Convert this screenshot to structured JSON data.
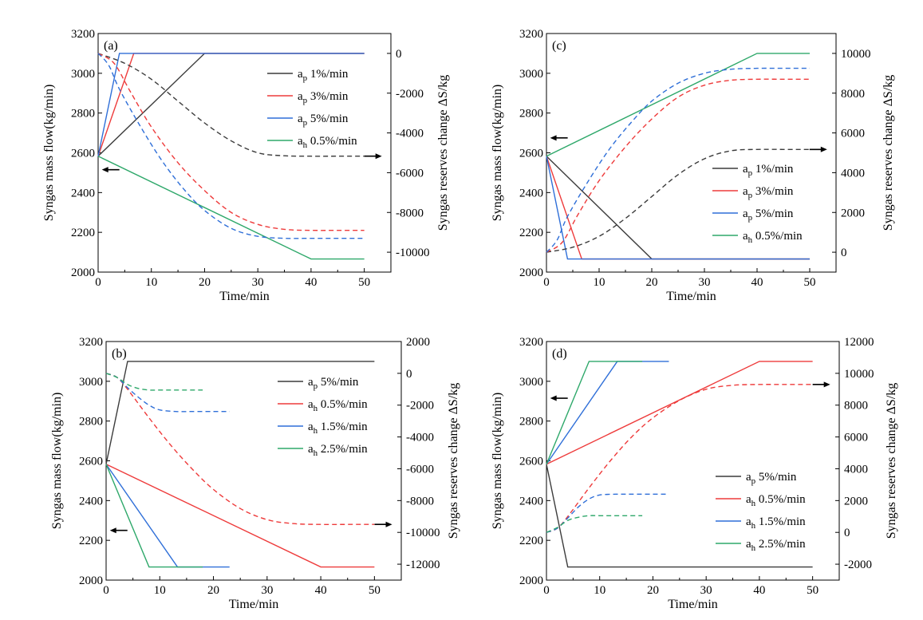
{
  "colors": {
    "black": "#3c3c3c",
    "red": "#ee3b3b",
    "blue": "#2f6fd8",
    "green": "#2ea86a"
  },
  "chart_data": [
    {
      "type": "line",
      "panel_label": "(a)",
      "xlabel": "Time/min",
      "ylabel": "Syngas mass flow(kg/min)",
      "y2label": "Syngas reserves change ΔS/kg",
      "xlim": [
        0,
        55
      ],
      "ylim": [
        2000,
        3200
      ],
      "y2lim": [
        -11000,
        1000
      ],
      "xticks": [
        0,
        10,
        20,
        30,
        40,
        50
      ],
      "yticks": [
        2000,
        2200,
        2400,
        2600,
        2800,
        3000,
        3200
      ],
      "y2ticks": [
        -10000,
        -8000,
        -6000,
        -4000,
        -2000,
        0
      ],
      "legend": "right",
      "series": [
        {
          "name_main": "a",
          "name_sub": "p",
          "name_rest": " 1%/min",
          "color": "black",
          "axis": "left",
          "style": "solid",
          "x": [
            0,
            20,
            50
          ],
          "y": [
            2583,
            3100,
            3100
          ]
        },
        {
          "name_main": "a",
          "name_sub": "p",
          "name_rest": " 3%/min",
          "color": "red",
          "axis": "left",
          "style": "solid",
          "x": [
            0,
            6.7,
            50
          ],
          "y": [
            2583,
            3100,
            3100
          ]
        },
        {
          "name_main": "a",
          "name_sub": "p",
          "name_rest": " 5%/min",
          "color": "blue",
          "axis": "left",
          "style": "solid",
          "x": [
            0,
            4,
            50
          ],
          "y": [
            2583,
            3100,
            3100
          ]
        },
        {
          "name_main": "a",
          "name_sub": "h",
          "name_rest": " 0.5%/min",
          "color": "green",
          "axis": "left",
          "style": "solid",
          "x": [
            0,
            40,
            50
          ],
          "y": [
            2583,
            2066,
            2066
          ]
        },
        {
          "color": "black",
          "axis": "right",
          "style": "dashed",
          "x": [
            0,
            5,
            10,
            15,
            20,
            25,
            30,
            35,
            40,
            45,
            50
          ],
          "y": [
            0,
            -500,
            -1300,
            -2400,
            -3500,
            -4400,
            -5000,
            -5150,
            -5170,
            -5170,
            -5170
          ]
        },
        {
          "color": "red",
          "axis": "right",
          "style": "dashed",
          "x": [
            0,
            3,
            6,
            10,
            15,
            20,
            25,
            30,
            35,
            40,
            45,
            50
          ],
          "y": [
            0,
            -500,
            -1900,
            -3700,
            -5500,
            -6900,
            -8000,
            -8600,
            -8850,
            -8900,
            -8900,
            -8900
          ]
        },
        {
          "color": "blue",
          "axis": "right",
          "style": "dashed",
          "x": [
            0,
            2,
            4,
            8,
            12,
            16,
            20,
            25,
            30,
            35,
            40,
            45,
            50
          ],
          "y": [
            0,
            -600,
            -1800,
            -3700,
            -5400,
            -6800,
            -7900,
            -8800,
            -9200,
            -9300,
            -9300,
            -9300,
            -9300
          ]
        }
      ],
      "arrows": [
        {
          "direction": "left",
          "axis": "left",
          "x": 1,
          "y": 2515
        },
        {
          "direction": "right",
          "axis": "right",
          "x": 53,
          "y": -5170
        }
      ]
    },
    {
      "type": "line",
      "panel_label": "(c)",
      "xlabel": "Time/min",
      "ylabel": "Syngas mass flow(kg/min)",
      "y2label": "Syngas reserves change ΔS/kg",
      "xlim": [
        0,
        55
      ],
      "ylim": [
        2000,
        3200
      ],
      "y2lim": [
        -1000,
        11000
      ],
      "xticks": [
        0,
        10,
        20,
        30,
        40,
        50
      ],
      "yticks": [
        2000,
        2200,
        2400,
        2600,
        2800,
        3000,
        3200
      ],
      "y2ticks": [
        0,
        2000,
        4000,
        6000,
        8000,
        10000
      ],
      "legend": "bottom-right",
      "series": [
        {
          "name_main": "a",
          "name_sub": "p",
          "name_rest": " 1%/min",
          "color": "black",
          "axis": "left",
          "style": "solid",
          "x": [
            0,
            20,
            50
          ],
          "y": [
            2583,
            2066,
            2066
          ]
        },
        {
          "name_main": "a",
          "name_sub": "p",
          "name_rest": " 3%/min",
          "color": "red",
          "axis": "left",
          "style": "solid",
          "x": [
            0,
            6.7,
            50
          ],
          "y": [
            2583,
            2066,
            2066
          ]
        },
        {
          "name_main": "a",
          "name_sub": "p",
          "name_rest": " 5%/min",
          "color": "blue",
          "axis": "left",
          "style": "solid",
          "x": [
            0,
            4,
            50
          ],
          "y": [
            2583,
            2066,
            2066
          ]
        },
        {
          "name_main": "a",
          "name_sub": "h",
          "name_rest": " 0.5%/min",
          "color": "green",
          "axis": "left",
          "style": "solid",
          "x": [
            0,
            40,
            50
          ],
          "y": [
            2583,
            3100,
            3100
          ]
        },
        {
          "color": "black",
          "axis": "right",
          "style": "dashed",
          "x": [
            0,
            5,
            10,
            15,
            20,
            25,
            30,
            35,
            40,
            45,
            50
          ],
          "y": [
            0,
            250,
            800,
            1700,
            2800,
            3900,
            4700,
            5100,
            5170,
            5170,
            5170
          ]
        },
        {
          "color": "red",
          "axis": "right",
          "style": "dashed",
          "x": [
            0,
            3,
            6,
            10,
            15,
            20,
            25,
            30,
            35,
            40,
            45,
            50
          ],
          "y": [
            0,
            500,
            1900,
            3600,
            5300,
            6700,
            7800,
            8400,
            8650,
            8700,
            8700,
            8700
          ]
        },
        {
          "color": "blue",
          "axis": "right",
          "style": "dashed",
          "x": [
            0,
            2,
            4,
            8,
            12,
            16,
            20,
            25,
            30,
            35,
            40,
            45,
            50
          ],
          "y": [
            0,
            600,
            1800,
            3600,
            5200,
            6500,
            7600,
            8500,
            9000,
            9200,
            9250,
            9250,
            9250
          ]
        }
      ],
      "arrows": [
        {
          "direction": "left",
          "axis": "left",
          "x": 1,
          "y": 2675
        },
        {
          "direction": "right",
          "axis": "right",
          "x": 53,
          "y": 5170
        }
      ]
    },
    {
      "type": "line",
      "panel_label": "(b)",
      "xlabel": "Time/min",
      "ylabel": "Syngas mass flow(kg/min)",
      "y2label": "Syngas reserves change ΔS/kg",
      "xlim": [
        0,
        55
      ],
      "ylim": [
        2000,
        3200
      ],
      "y2lim": [
        -13000,
        2000
      ],
      "xticks": [
        0,
        10,
        20,
        30,
        40,
        50
      ],
      "yticks": [
        2000,
        2200,
        2400,
        2600,
        2800,
        3000,
        3200
      ],
      "y2ticks": [
        -12000,
        -10000,
        -8000,
        -6000,
        -4000,
        -2000,
        0,
        2000
      ],
      "legend": "right",
      "series": [
        {
          "name_main": "a",
          "name_sub": "p",
          "name_rest": " 5%/min",
          "color": "black",
          "axis": "left",
          "style": "solid",
          "x": [
            0,
            4,
            50
          ],
          "y": [
            2583,
            3100,
            3100
          ]
        },
        {
          "name_main": "a",
          "name_sub": "h",
          "name_rest": " 0.5%/min",
          "color": "red",
          "axis": "left",
          "style": "solid",
          "x": [
            0,
            40,
            50
          ],
          "y": [
            2583,
            2066,
            2066
          ]
        },
        {
          "name_main": "a",
          "name_sub": "h",
          "name_rest": " 1.5%/min",
          "color": "blue",
          "axis": "left",
          "style": "solid",
          "x": [
            0,
            13.3,
            23
          ],
          "y": [
            2583,
            2066,
            2066
          ]
        },
        {
          "name_main": "a",
          "name_sub": "h",
          "name_rest": " 2.5%/min",
          "color": "green",
          "axis": "left",
          "style": "solid",
          "x": [
            0,
            8,
            18
          ],
          "y": [
            2583,
            2066,
            2066
          ]
        },
        {
          "color": "red",
          "axis": "right",
          "style": "dashed",
          "x": [
            0,
            2,
            4,
            8,
            12,
            16,
            20,
            25,
            30,
            35,
            40,
            45,
            50
          ],
          "y": [
            0,
            -250,
            -1000,
            -2800,
            -4500,
            -6000,
            -7300,
            -8500,
            -9200,
            -9450,
            -9500,
            -9500,
            -9500
          ]
        },
        {
          "color": "blue",
          "axis": "right",
          "style": "dashed",
          "x": [
            0,
            2,
            4,
            6,
            8,
            10,
            13,
            16,
            20,
            23
          ],
          "y": [
            0,
            -250,
            -900,
            -1500,
            -2000,
            -2300,
            -2400,
            -2400,
            -2400,
            -2400
          ]
        },
        {
          "color": "green",
          "axis": "right",
          "style": "dashed",
          "x": [
            0,
            2,
            4,
            6,
            8,
            10,
            13,
            18
          ],
          "y": [
            0,
            -250,
            -700,
            -950,
            -1050,
            -1050,
            -1050,
            -1050
          ]
        }
      ],
      "arrows": [
        {
          "direction": "left",
          "axis": "left",
          "x": 1,
          "y": 2250
        },
        {
          "direction": "right",
          "axis": "right",
          "x": 53,
          "y": -9500
        }
      ]
    },
    {
      "type": "line",
      "panel_label": "(d)",
      "xlabel": "Time/min",
      "ylabel": "Syngas mass flow(kg/min)",
      "y2label": "Syngas reserves change ΔS/kg",
      "xlim": [
        0,
        55
      ],
      "ylim": [
        2000,
        3200
      ],
      "y2lim": [
        -3000,
        12000
      ],
      "xticks": [
        0,
        10,
        20,
        30,
        40,
        50
      ],
      "yticks": [
        2000,
        2200,
        2400,
        2600,
        2800,
        3000,
        3200
      ],
      "y2ticks": [
        -2000,
        0,
        2000,
        4000,
        6000,
        8000,
        10000,
        12000
      ],
      "legend": "bottom-right",
      "series": [
        {
          "name_main": "a",
          "name_sub": "p",
          "name_rest": " 5%/min",
          "color": "black",
          "axis": "left",
          "style": "solid",
          "x": [
            0,
            4,
            50
          ],
          "y": [
            2583,
            2066,
            2066
          ]
        },
        {
          "name_main": "a",
          "name_sub": "h",
          "name_rest": " 0.5%/min",
          "color": "red",
          "axis": "left",
          "style": "solid",
          "x": [
            0,
            40,
            50
          ],
          "y": [
            2583,
            3100,
            3100
          ]
        },
        {
          "name_main": "a",
          "name_sub": "h",
          "name_rest": " 1.5%/min",
          "color": "blue",
          "axis": "left",
          "style": "solid",
          "x": [
            0,
            13.3,
            23
          ],
          "y": [
            2583,
            3100,
            3100
          ]
        },
        {
          "name_main": "a",
          "name_sub": "h",
          "name_rest": " 2.5%/min",
          "color": "green",
          "axis": "left",
          "style": "solid",
          "x": [
            0,
            8,
            18
          ],
          "y": [
            2583,
            3100,
            3100
          ]
        },
        {
          "color": "red",
          "axis": "right",
          "style": "dashed",
          "x": [
            0,
            2,
            4,
            8,
            12,
            16,
            20,
            25,
            30,
            35,
            40,
            45,
            50
          ],
          "y": [
            0,
            250,
            1000,
            2800,
            4500,
            6000,
            7200,
            8300,
            9000,
            9250,
            9300,
            9300,
            9300
          ]
        },
        {
          "color": "blue",
          "axis": "right",
          "style": "dashed",
          "x": [
            0,
            2,
            4,
            6,
            8,
            10,
            13,
            16,
            20,
            23
          ],
          "y": [
            0,
            250,
            900,
            1600,
            2100,
            2350,
            2400,
            2400,
            2400,
            2400
          ]
        },
        {
          "color": "green",
          "axis": "right",
          "style": "dashed",
          "x": [
            0,
            2,
            4,
            6,
            8,
            10,
            13,
            18
          ],
          "y": [
            0,
            300,
            750,
            950,
            1050,
            1050,
            1050,
            1050
          ]
        }
      ],
      "arrows": [
        {
          "direction": "left",
          "axis": "left",
          "x": 1,
          "y": 2915
        },
        {
          "direction": "right",
          "axis": "right",
          "x": 53,
          "y": 9300
        }
      ]
    }
  ]
}
